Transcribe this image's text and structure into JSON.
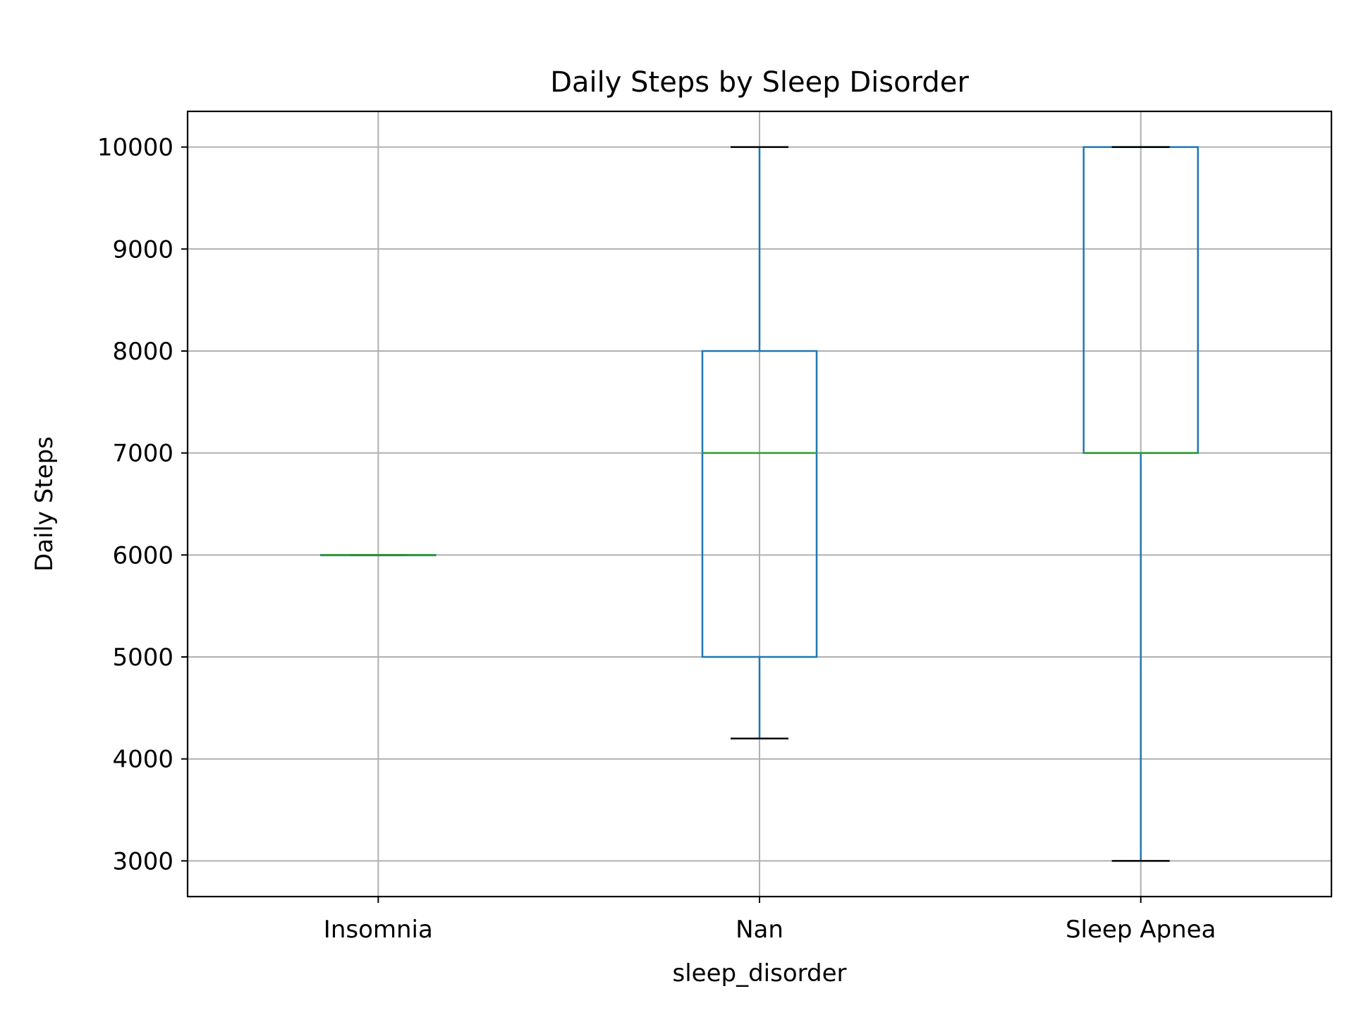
{
  "chart_data": {
    "type": "box",
    "title": "Daily Steps by Sleep Disorder",
    "xlabel": "sleep_disorder",
    "ylabel": "Daily Steps",
    "ylim": [
      2650,
      10350
    ],
    "yticks": [
      3000,
      4000,
      5000,
      6000,
      7000,
      8000,
      9000,
      10000
    ],
    "categories": [
      "Insomnia",
      "Nan",
      "Sleep Apnea"
    ],
    "boxes": [
      {
        "category": "Insomnia",
        "whislo": 6000,
        "q1": 6000,
        "med": 6000,
        "q3": 6000,
        "whishi": 6000
      },
      {
        "category": "Nan",
        "whislo": 4200,
        "q1": 5000,
        "med": 7000,
        "q3": 8000,
        "whishi": 10000
      },
      {
        "category": "Sleep Apnea",
        "whislo": 3000,
        "q1": 7000,
        "med": 7000,
        "q3": 10000,
        "whishi": 10000
      }
    ],
    "grid": true,
    "colors": {
      "box": "#1f77b4",
      "median": "#2ca02c",
      "cap": "#000000",
      "grid": "#b0b0b0"
    }
  }
}
